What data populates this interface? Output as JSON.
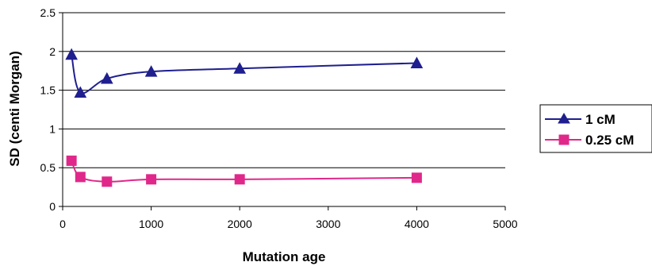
{
  "chart_data": {
    "type": "line",
    "title": "",
    "xlabel": "Mutation age",
    "ylabel": "SD (centi Morgan)",
    "xlim": [
      0,
      5000
    ],
    "ylim": [
      0,
      2.5
    ],
    "x_ticks": [
      "0",
      "1000",
      "2000",
      "3000",
      "4000",
      "5000"
    ],
    "y_ticks": [
      "0",
      "0.5",
      "1",
      "1.5",
      "2",
      "2.5"
    ],
    "grid": "horizontal",
    "legend_position": "right",
    "series": [
      {
        "name": "1 cM",
        "color": "#1f1f8f",
        "marker": "triangle",
        "x": [
          100,
          200,
          500,
          1000,
          2000,
          4000
        ],
        "y": [
          1.96,
          1.47,
          1.65,
          1.74,
          1.78,
          1.85
        ]
      },
      {
        "name": "0.25 cM",
        "color": "#e0288a",
        "marker": "square",
        "x": [
          100,
          200,
          500,
          1000,
          2000,
          4000
        ],
        "y": [
          0.59,
          0.38,
          0.32,
          0.35,
          0.35,
          0.37
        ]
      }
    ]
  }
}
